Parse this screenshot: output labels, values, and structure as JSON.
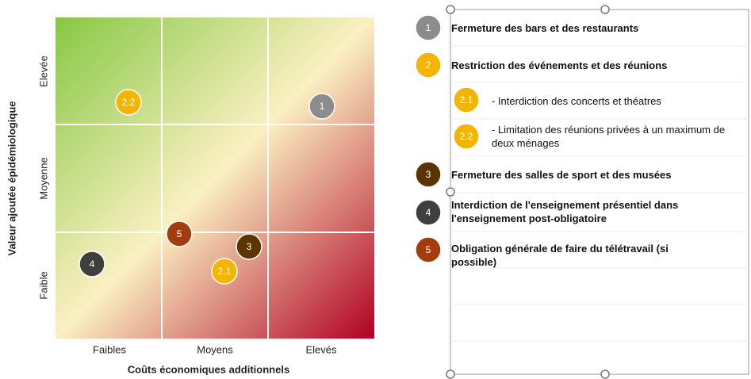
{
  "matrix": {
    "y_axis_title": "Valeur ajoutée épidémiologique",
    "x_axis_title": "Coûts économiques additionnels",
    "x_levels": [
      "Faibles",
      "Moyens",
      "Elevés"
    ],
    "y_levels": [
      "Elevée",
      "Moyenne",
      "Faible"
    ],
    "markers": [
      {
        "label": "1"
      },
      {
        "label": "2.2"
      },
      {
        "label": "5"
      },
      {
        "label": "3"
      },
      {
        "label": "4"
      },
      {
        "label": "2.1"
      }
    ]
  },
  "legend": {
    "items": [
      {
        "badge": "1",
        "text": "Fermeture des bars et des restaurants"
      },
      {
        "badge": "2",
        "text": "Restriction des événements et des réunions"
      },
      {
        "badge": "2.1",
        "text": "- Interdiction des concerts et théatres"
      },
      {
        "badge": "2.2",
        "text": "- Limitation des réunions privées à un maximum de deux ménages"
      },
      {
        "badge": "3",
        "text": "Fermeture des salles de sport et des musées"
      },
      {
        "badge": "4",
        "text": "Interdiction de l'enseignement présentiel dans l'enseignement post-obligatoire"
      },
      {
        "badge": "5",
        "text": "Obligation générale de faire du télétravail (si possible)"
      }
    ]
  }
}
